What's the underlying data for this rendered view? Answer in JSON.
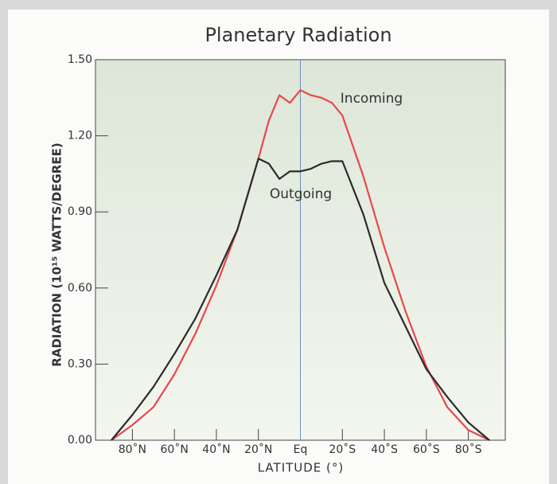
{
  "chart_data": {
    "type": "line",
    "title": "Planetary Radiation",
    "x_label": "LATITUDE (°)",
    "y_label": "RADIATION (10¹⁵ WATTS/DEGREE)",
    "x": [
      -90,
      -80,
      -70,
      -60,
      -50,
      -40,
      -30,
      -20,
      -15,
      -10,
      -5,
      0,
      5,
      10,
      15,
      20,
      30,
      40,
      50,
      60,
      70,
      80,
      90
    ],
    "series": [
      {
        "name": "Incoming",
        "color": "#e8474b",
        "values": [
          0,
          0.06,
          0.13,
          0.26,
          0.42,
          0.61,
          0.83,
          1.11,
          1.26,
          1.36,
          1.33,
          1.38,
          1.36,
          1.35,
          1.33,
          1.28,
          1.04,
          0.76,
          0.51,
          0.29,
          0.13,
          0.04,
          0
        ]
      },
      {
        "name": "Outgoing",
        "color": "#2b2b2b",
        "values": [
          0,
          0.1,
          0.21,
          0.34,
          0.48,
          0.65,
          0.83,
          1.11,
          1.09,
          1.03,
          1.06,
          1.06,
          1.07,
          1.09,
          1.1,
          1.1,
          0.89,
          0.62,
          0.45,
          0.28,
          0.17,
          0.07,
          0
        ]
      }
    ],
    "xlim": [
      -90,
      90
    ],
    "xticks": [
      {
        "value": -80,
        "label": "80˚N"
      },
      {
        "value": -60,
        "label": "60˚N"
      },
      {
        "value": -40,
        "label": "40˚N"
      },
      {
        "value": -20,
        "label": "20˚N"
      },
      {
        "value": 0,
        "label": "Eq"
      },
      {
        "value": 20,
        "label": "20˚S"
      },
      {
        "value": 40,
        "label": "40˚S"
      },
      {
        "value": 60,
        "label": "60˚S"
      },
      {
        "value": 80,
        "label": "80˚S"
      }
    ],
    "ylim": [
      0,
      1.5
    ],
    "yticks": [
      {
        "value": 0,
        "label": "0.00"
      },
      {
        "value": 0.3,
        "label": "0.30"
      },
      {
        "value": 0.6,
        "label": "0.60"
      },
      {
        "value": 0.9,
        "label": "0.90"
      },
      {
        "value": 1.2,
        "label": "1.20"
      },
      {
        "value": 1.5,
        "label": "1.50"
      }
    ]
  }
}
